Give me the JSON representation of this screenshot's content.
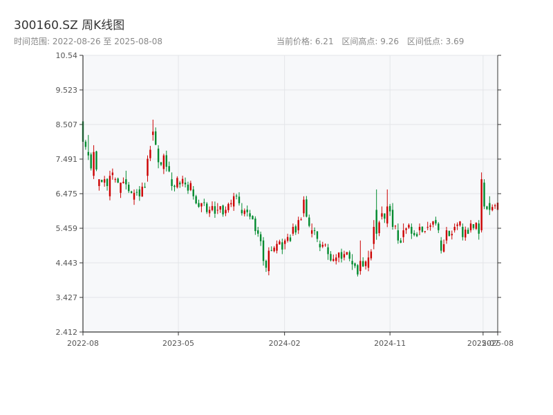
{
  "header": {
    "title": "300160.SZ 周K线图",
    "range_text": "时间范围: 2022-08-26 至 2025-08-08",
    "current_price_text": "当前价格: 6.21",
    "high_text": "区间高点: 9.26",
    "low_text": "区间低点: 3.69"
  },
  "colors": {
    "up": "#cc0000",
    "down": "#008a2e",
    "plot_bg": "#f7f8fa",
    "grid": "#e3e5e8",
    "axis": "#333333"
  },
  "chart_data": {
    "type": "candlestick",
    "title": "300160.SZ 周K线图",
    "ylim": [
      2.412,
      10.54
    ],
    "y_ticks": [
      "10.54",
      "9.523",
      "8.507",
      "7.491",
      "6.475",
      "5.459",
      "4.443",
      "3.427",
      "2.412"
    ],
    "x_ticks": [
      {
        "label": "2022-08",
        "date": "2022-08-26"
      },
      {
        "label": "2023-05",
        "date": "2023-05-01"
      },
      {
        "label": "2024-02",
        "date": "2024-02-01"
      },
      {
        "label": "2024-11",
        "date": "2024-11-01"
      },
      {
        "label": "2025-07",
        "date": "2025-07-01"
      },
      {
        "label": "2025-08",
        "date": "2025-08-08"
      }
    ],
    "date_range": [
      "2022-08-26",
      "2025-08-08"
    ],
    "current_price": 6.21,
    "high": 9.26,
    "low": 3.69,
    "grid": true,
    "anchors": [
      [
        "2022-08-26",
        8.6,
        8.0,
        9.05
      ],
      [
        "2022-09-09",
        7.7,
        7.6,
        8.2
      ],
      [
        "2022-09-23",
        7.0,
        7.7,
        7.9
      ],
      [
        "2022-10-07",
        6.7,
        6.9,
        6.9
      ],
      [
        "2022-10-21",
        6.8,
        6.9,
        7.0
      ],
      [
        "2022-11-04",
        6.4,
        7.0,
        7.15
      ],
      [
        "2022-11-18",
        6.9,
        6.9,
        6.95
      ],
      [
        "2022-12-02",
        6.5,
        6.8,
        6.8
      ],
      [
        "2022-12-16",
        6.9,
        6.75,
        7.15
      ],
      [
        "2023-01-06",
        6.3,
        6.5,
        6.6
      ],
      [
        "2023-01-20",
        6.6,
        6.4,
        6.7
      ],
      [
        "2023-02-10",
        7.0,
        7.5,
        7.6
      ],
      [
        "2023-02-24",
        8.2,
        8.3,
        8.65
      ],
      [
        "2023-03-10",
        7.8,
        7.4,
        7.9
      ],
      [
        "2023-03-24",
        7.2,
        7.6,
        7.65
      ],
      [
        "2023-04-14",
        6.9,
        6.7,
        7.1
      ],
      [
        "2023-05-05",
        6.8,
        6.75,
        6.85
      ],
      [
        "2023-05-19",
        6.8,
        6.75,
        6.95
      ],
      [
        "2023-06-09",
        6.6,
        6.4,
        6.7
      ],
      [
        "2023-06-30",
        6.1,
        6.2,
        6.2
      ],
      [
        "2023-07-21",
        5.9,
        6.0,
        6.1
      ],
      [
        "2023-08-11",
        6.0,
        6.0,
        6.2
      ],
      [
        "2023-09-01",
        5.9,
        6.0,
        6.1
      ],
      [
        "2023-09-22",
        6.1,
        6.4,
        6.5
      ],
      [
        "2023-10-13",
        6.0,
        5.9,
        6.2
      ],
      [
        "2023-11-03",
        5.9,
        5.8,
        6.0
      ],
      [
        "2023-11-24",
        5.4,
        5.3,
        5.5
      ],
      [
        "2023-12-08",
        5.1,
        4.5,
        5.2
      ],
      [
        "2023-12-22",
        4.2,
        4.8,
        4.9
      ],
      [
        "2024-01-12",
        4.8,
        5.0,
        5.1
      ],
      [
        "2024-02-02",
        5.0,
        5.1,
        5.15
      ],
      [
        "2024-02-23",
        5.3,
        5.5,
        5.6
      ],
      [
        "2024-03-08",
        5.4,
        5.7,
        5.8
      ],
      [
        "2024-03-22",
        5.9,
        6.3,
        6.4
      ],
      [
        "2024-04-12",
        5.3,
        5.4,
        5.6
      ],
      [
        "2024-05-03",
        5.0,
        4.9,
        5.1
      ],
      [
        "2024-05-24",
        4.9,
        4.7,
        5.0
      ],
      [
        "2024-06-14",
        4.5,
        4.6,
        4.7
      ],
      [
        "2024-07-05",
        4.6,
        4.7,
        4.8
      ],
      [
        "2024-07-26",
        4.5,
        4.4,
        4.7
      ],
      [
        "2024-08-16",
        4.2,
        4.5,
        5.1
      ],
      [
        "2024-09-06",
        4.3,
        4.6,
        4.8
      ],
      [
        "2024-09-20",
        5.0,
        5.5,
        5.7
      ],
      [
        "2024-09-27",
        6.0,
        5.3,
        6.6
      ],
      [
        "2024-10-11",
        5.8,
        5.9,
        6.1
      ],
      [
        "2024-10-25",
        5.6,
        6.1,
        6.6
      ],
      [
        "2024-11-08",
        6.0,
        5.5,
        6.2
      ],
      [
        "2024-11-22",
        5.4,
        5.1,
        5.6
      ],
      [
        "2024-12-06",
        5.2,
        5.4,
        5.6
      ],
      [
        "2024-12-27",
        5.5,
        5.3,
        5.6
      ],
      [
        "2025-01-17",
        5.4,
        5.5,
        5.6
      ],
      [
        "2025-02-07",
        5.5,
        5.5,
        5.65
      ],
      [
        "2025-02-28",
        5.7,
        5.6,
        5.8
      ],
      [
        "2025-03-14",
        5.1,
        4.8,
        5.2
      ],
      [
        "2025-03-28",
        5.1,
        5.4,
        5.5
      ],
      [
        "2025-04-18",
        5.4,
        5.5,
        5.6
      ],
      [
        "2025-05-09",
        5.5,
        5.2,
        5.6
      ],
      [
        "2025-05-30",
        5.4,
        5.6,
        5.7
      ],
      [
        "2025-06-20",
        5.6,
        5.3,
        5.7
      ],
      [
        "2025-06-27",
        5.4,
        6.9,
        7.1
      ],
      [
        "2025-07-04",
        6.8,
        6.1,
        6.9
      ],
      [
        "2025-07-18",
        6.2,
        6.0,
        6.4
      ],
      [
        "2025-08-08",
        6.0,
        6.21,
        6.4
      ]
    ]
  }
}
